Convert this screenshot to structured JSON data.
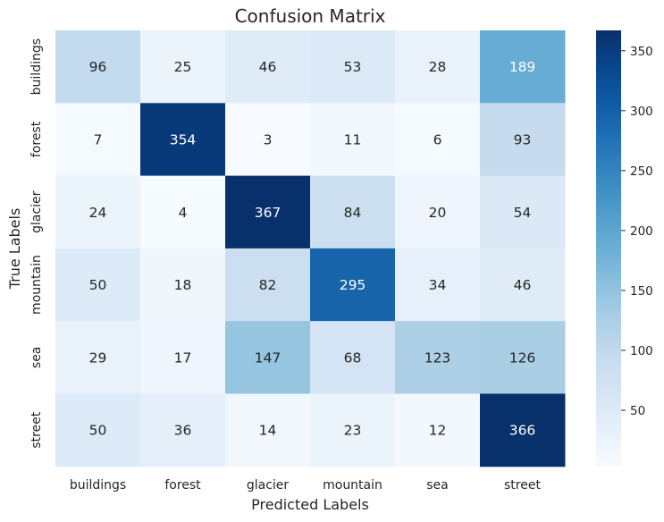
{
  "chart_data": {
    "type": "heatmap",
    "title": "Confusion Matrix",
    "xlabel": "Predicted Labels",
    "ylabel": "True Labels",
    "x_categories": [
      "buildings",
      "forest",
      "glacier",
      "mountain",
      "sea",
      "street"
    ],
    "y_categories": [
      "buildings",
      "forest",
      "glacier",
      "mountain",
      "sea",
      "street"
    ],
    "values": [
      [
        96,
        25,
        46,
        53,
        28,
        189
      ],
      [
        7,
        354,
        3,
        11,
        6,
        93
      ],
      [
        24,
        4,
        367,
        84,
        20,
        54
      ],
      [
        50,
        18,
        82,
        295,
        34,
        46
      ],
      [
        29,
        17,
        147,
        68,
        123,
        126
      ],
      [
        50,
        36,
        14,
        23,
        12,
        366
      ]
    ],
    "colormap": "Blues",
    "color_range": [
      3,
      367
    ],
    "colorbar_ticks": [
      50,
      100,
      150,
      200,
      250,
      300,
      350
    ],
    "grid": false
  }
}
